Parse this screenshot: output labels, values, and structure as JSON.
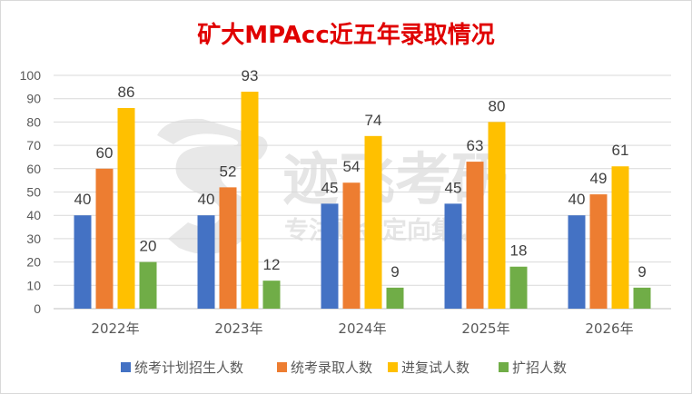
{
  "chart_data": {
    "type": "bar",
    "title": "矿大MPAcc近五年录取情况",
    "categories": [
      "2022年",
      "2023年",
      "2024年",
      "2025年",
      "2026年"
    ],
    "series": [
      {
        "name": "统考计划招生人数",
        "color": "#4472c4",
        "values": [
          40,
          40,
          45,
          45,
          40
        ]
      },
      {
        "name": "统考录取人数",
        "color": "#ed7d31",
        "values": [
          60,
          52,
          54,
          63,
          49
        ]
      },
      {
        "name": "进复试人数",
        "color": "#ffc000",
        "values": [
          86,
          93,
          74,
          80,
          61
        ]
      },
      {
        "name": "扩招人数",
        "color": "#70ad47",
        "values": [
          20,
          12,
          9,
          18,
          9
        ]
      }
    ],
    "ylim": [
      0,
      100
    ],
    "yticks": [
      0,
      10,
      20,
      30,
      40,
      50,
      60,
      70,
      80,
      90,
      100
    ],
    "grid": true,
    "legend_position": "bottom",
    "title_color": "#e00000"
  },
  "watermark": {
    "brand": "迹飞考研",
    "slogan": "专注财金定向集训",
    "icon": "s-logo-icon",
    "color": "#d0d0d0"
  }
}
